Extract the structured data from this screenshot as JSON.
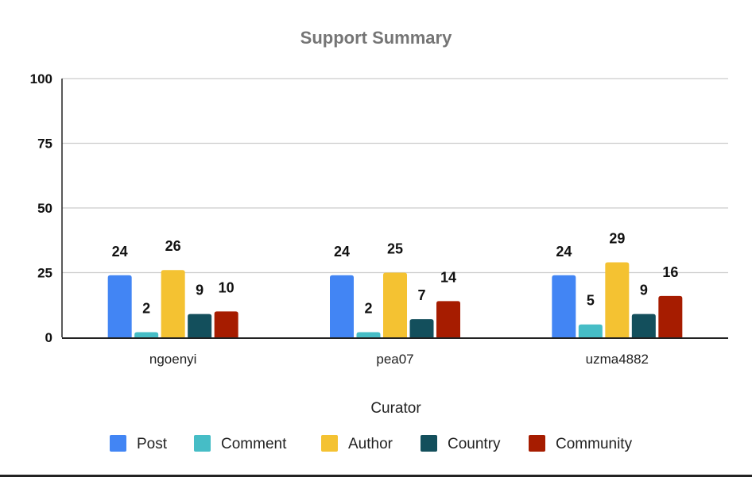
{
  "chart_data": {
    "type": "bar",
    "title": "Support Summary",
    "xlabel": "Curator",
    "ylabel": "",
    "ylim": [
      0,
      100
    ],
    "yticks": [
      0,
      25,
      50,
      75,
      100
    ],
    "grid": true,
    "legend_position": "bottom",
    "categories": [
      "ngoenyi",
      "pea07",
      "uzma4882"
    ],
    "series": [
      {
        "name": "Post",
        "color": "#4285f4",
        "values": [
          24,
          24,
          24
        ]
      },
      {
        "name": "Comment",
        "color": "#46bdc6",
        "values": [
          2,
          2,
          5
        ]
      },
      {
        "name": "Author",
        "color": "#f4c232",
        "values": [
          26,
          25,
          29
        ]
      },
      {
        "name": "Country",
        "color": "#134f5c",
        "values": [
          9,
          7,
          9
        ]
      },
      {
        "name": "Community",
        "color": "#a61c00",
        "values": [
          10,
          14,
          16
        ]
      }
    ]
  }
}
